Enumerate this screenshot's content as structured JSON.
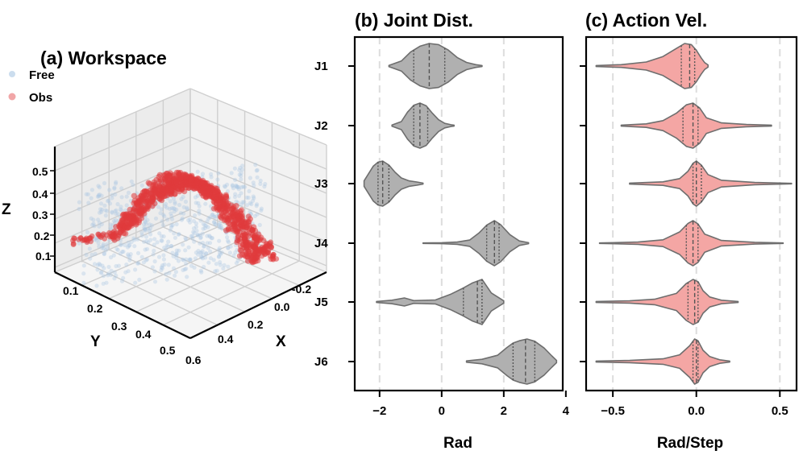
{
  "colors": {
    "free": "#a9c7e3",
    "obs": "#e03a3c",
    "gray_violin": "#b0b0b0",
    "pink_violin": "#f4a6a4",
    "edge": "#6e6e6e",
    "grid_dash": "#dddddd"
  },
  "chart_data": [
    {
      "type": "scatter",
      "title": "(a) Workspace",
      "xlabel": "X",
      "ylabel": "Y",
      "zlabel": "Z",
      "xticks": [
        "-0.2",
        "0.0",
        "0.2",
        "0.4",
        "0.6"
      ],
      "yticks": [
        "0.1",
        "0.2",
        "0.3",
        "0.4",
        "0.5"
      ],
      "zticks": [
        "0.1",
        "0.2",
        "0.3",
        "0.4",
        "0.5"
      ],
      "legend": [
        {
          "label": "Free",
          "color": "#a9c7e3"
        },
        {
          "label": "Obs",
          "color": "#e03a3c"
        }
      ],
      "legend_position": "top-left"
    },
    {
      "type": "violin",
      "title": "(b) Joint Dist.",
      "xlabel": "Rad",
      "categories": [
        "J1",
        "J2",
        "J3",
        "J4",
        "J5",
        "J6"
      ],
      "xlim": [
        -2.8,
        3.9
      ],
      "xticks": [
        -2,
        0,
        2,
        4
      ],
      "xtick_labels": [
        "−2",
        "0",
        "2",
        "4"
      ],
      "reference_lines": [
        -2,
        0,
        2
      ],
      "series": [
        {
          "name": "J1",
          "min": -1.7,
          "max": 1.3,
          "quartiles": [
            -0.9,
            -0.4,
            0.1
          ],
          "density": [
            [
              -1.7,
              0.03
            ],
            [
              -1.3,
              0.22
            ],
            [
              -1.0,
              0.62
            ],
            [
              -0.7,
              0.88
            ],
            [
              -0.4,
              1.0
            ],
            [
              -0.1,
              0.95
            ],
            [
              0.2,
              0.72
            ],
            [
              0.5,
              0.38
            ],
            [
              0.8,
              0.16
            ],
            [
              1.1,
              0.06
            ],
            [
              1.3,
              0.02
            ]
          ]
        },
        {
          "name": "J2",
          "min": -1.6,
          "max": 0.4,
          "quartiles": [
            -0.9,
            -0.7,
            -0.45
          ],
          "density": [
            [
              -1.6,
              0.03
            ],
            [
              -1.3,
              0.18
            ],
            [
              -1.1,
              0.6
            ],
            [
              -0.9,
              0.9
            ],
            [
              -0.7,
              1.0
            ],
            [
              -0.5,
              0.88
            ],
            [
              -0.3,
              0.55
            ],
            [
              -0.1,
              0.26
            ],
            [
              0.1,
              0.1
            ],
            [
              0.3,
              0.04
            ],
            [
              0.4,
              0.02
            ]
          ]
        },
        {
          "name": "J3",
          "min": -2.5,
          "max": -0.6,
          "quartiles": [
            -2.05,
            -1.9,
            -1.7
          ],
          "density": [
            [
              -2.5,
              0.12
            ],
            [
              -2.35,
              0.45
            ],
            [
              -2.2,
              0.78
            ],
            [
              -2.05,
              0.95
            ],
            [
              -1.9,
              1.0
            ],
            [
              -1.7,
              0.82
            ],
            [
              -1.5,
              0.5
            ],
            [
              -1.3,
              0.25
            ],
            [
              -1.05,
              0.12
            ],
            [
              -0.8,
              0.07
            ],
            [
              -0.6,
              0.02
            ]
          ]
        },
        {
          "name": "J4",
          "min": -0.6,
          "max": 2.8,
          "quartiles": [
            1.45,
            1.7,
            1.85
          ],
          "density": [
            [
              -0.6,
              0.01
            ],
            [
              0.0,
              0.02
            ],
            [
              0.5,
              0.05
            ],
            [
              0.9,
              0.14
            ],
            [
              1.2,
              0.45
            ],
            [
              1.45,
              0.8
            ],
            [
              1.7,
              1.0
            ],
            [
              1.9,
              0.82
            ],
            [
              2.2,
              0.38
            ],
            [
              2.5,
              0.1
            ],
            [
              2.8,
              0.02
            ]
          ]
        },
        {
          "name": "J5",
          "min": -2.1,
          "max": 2.0,
          "quartiles": [
            0.7,
            1.15,
            1.3
          ],
          "density": [
            [
              -2.1,
              0.02
            ],
            [
              -1.6,
              0.08
            ],
            [
              -1.2,
              0.18
            ],
            [
              -0.9,
              0.06
            ],
            [
              -0.2,
              0.09
            ],
            [
              0.3,
              0.35
            ],
            [
              0.7,
              0.62
            ],
            [
              1.0,
              0.85
            ],
            [
              1.3,
              1.0
            ],
            [
              1.6,
              0.4
            ],
            [
              2.0,
              0.05
            ]
          ]
        },
        {
          "name": "J6",
          "min": 0.8,
          "max": 3.7,
          "quartiles": [
            2.3,
            2.7,
            3.0
          ],
          "density": [
            [
              0.8,
              0.03
            ],
            [
              1.3,
              0.1
            ],
            [
              1.8,
              0.28
            ],
            [
              2.1,
              0.62
            ],
            [
              2.3,
              0.82
            ],
            [
              2.5,
              0.92
            ],
            [
              2.75,
              1.0
            ],
            [
              3.0,
              0.9
            ],
            [
              3.3,
              0.6
            ],
            [
              3.55,
              0.25
            ],
            [
              3.7,
              0.05
            ]
          ]
        }
      ]
    },
    {
      "type": "violin",
      "title": "(c) Action Vel.",
      "xlabel": "Rad/Step",
      "categories": [
        "J1",
        "J2",
        "J3",
        "J4",
        "J5",
        "J6"
      ],
      "xlim": [
        -0.66,
        0.6
      ],
      "xticks": [
        -0.5,
        0.0,
        0.5
      ],
      "xtick_labels": [
        "−0.5",
        "0.0",
        "0.5"
      ],
      "reference_lines": [
        -0.5,
        0.0,
        0.5
      ],
      "series": [
        {
          "name": "J1",
          "min": -0.6,
          "max": 0.07,
          "quartiles": [
            -0.09,
            -0.04,
            -0.01
          ],
          "density": [
            [
              -0.6,
              0.02
            ],
            [
              -0.45,
              0.06
            ],
            [
              -0.3,
              0.18
            ],
            [
              -0.2,
              0.42
            ],
            [
              -0.12,
              0.78
            ],
            [
              -0.07,
              1.0
            ],
            [
              -0.03,
              0.95
            ],
            [
              0.0,
              0.7
            ],
            [
              0.03,
              0.35
            ],
            [
              0.05,
              0.15
            ],
            [
              0.07,
              0.05
            ]
          ]
        },
        {
          "name": "J2",
          "min": -0.45,
          "max": 0.45,
          "quartiles": [
            -0.08,
            -0.02,
            0.01
          ],
          "density": [
            [
              -0.45,
              0.02
            ],
            [
              -0.3,
              0.08
            ],
            [
              -0.2,
              0.22
            ],
            [
              -0.12,
              0.55
            ],
            [
              -0.06,
              0.92
            ],
            [
              -0.02,
              1.0
            ],
            [
              0.02,
              0.78
            ],
            [
              0.06,
              0.35
            ],
            [
              0.15,
              0.12
            ],
            [
              0.3,
              0.05
            ],
            [
              0.45,
              0.02
            ]
          ]
        },
        {
          "name": "J3",
          "min": -0.4,
          "max": 0.57,
          "quartiles": [
            -0.02,
            0.0,
            0.03
          ],
          "density": [
            [
              -0.4,
              0.02
            ],
            [
              -0.2,
              0.08
            ],
            [
              -0.1,
              0.22
            ],
            [
              -0.05,
              0.55
            ],
            [
              -0.02,
              0.9
            ],
            [
              0.0,
              1.0
            ],
            [
              0.03,
              0.82
            ],
            [
              0.07,
              0.4
            ],
            [
              0.15,
              0.15
            ],
            [
              0.35,
              0.05
            ],
            [
              0.57,
              0.01
            ]
          ]
        },
        {
          "name": "J4",
          "min": -0.58,
          "max": 0.52,
          "quartiles": [
            -0.06,
            -0.02,
            0.01
          ],
          "density": [
            [
              -0.58,
              0.01
            ],
            [
              -0.35,
              0.05
            ],
            [
              -0.2,
              0.15
            ],
            [
              -0.1,
              0.5
            ],
            [
              -0.05,
              0.88
            ],
            [
              -0.02,
              1.0
            ],
            [
              0.01,
              0.85
            ],
            [
              0.05,
              0.4
            ],
            [
              0.15,
              0.12
            ],
            [
              0.35,
              0.04
            ],
            [
              0.52,
              0.01
            ]
          ]
        },
        {
          "name": "J5",
          "min": -0.6,
          "max": 0.25,
          "quartiles": [
            -0.05,
            -0.01,
            0.01
          ],
          "density": [
            [
              -0.6,
              0.02
            ],
            [
              -0.4,
              0.05
            ],
            [
              -0.25,
              0.12
            ],
            [
              -0.12,
              0.38
            ],
            [
              -0.06,
              0.82
            ],
            [
              -0.02,
              1.0
            ],
            [
              0.01,
              0.9
            ],
            [
              0.04,
              0.5
            ],
            [
              0.08,
              0.22
            ],
            [
              0.15,
              0.08
            ],
            [
              0.25,
              0.02
            ]
          ]
        },
        {
          "name": "J6",
          "min": -0.6,
          "max": 0.2,
          "quartiles": [
            -0.02,
            0.0,
            0.01
          ],
          "density": [
            [
              -0.6,
              0.02
            ],
            [
              -0.4,
              0.05
            ],
            [
              -0.2,
              0.12
            ],
            [
              -0.1,
              0.3
            ],
            [
              -0.04,
              0.7
            ],
            [
              -0.01,
              1.0
            ],
            [
              0.01,
              0.92
            ],
            [
              0.04,
              0.5
            ],
            [
              0.08,
              0.22
            ],
            [
              0.14,
              0.08
            ],
            [
              0.2,
              0.02
            ]
          ]
        }
      ]
    }
  ]
}
